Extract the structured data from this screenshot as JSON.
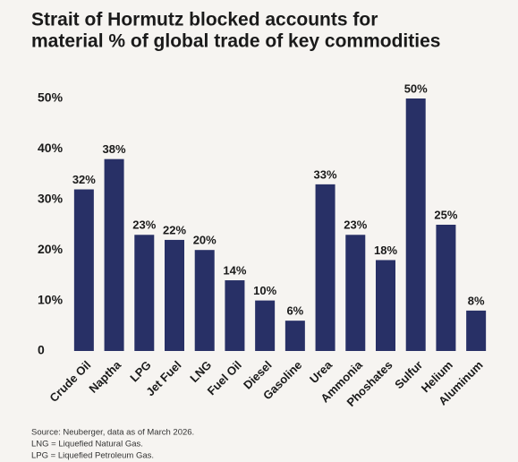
{
  "chart_data": {
    "type": "bar",
    "title_lines": [
      "Strait of Hormutz blocked accounts for",
      "material % of global trade of key commodities"
    ],
    "categories": [
      "Crude Oil",
      "Naptha",
      "LPG",
      "Jet Fuel",
      "LNG",
      "Fuel Oil",
      "Diesel",
      "Gasoline",
      "Urea",
      "Ammonia",
      "Phoshates",
      "Sulfur",
      "Helium",
      "Aluminum"
    ],
    "values": [
      32,
      38,
      23,
      22,
      20,
      14,
      10,
      6,
      33,
      23,
      18,
      50,
      25,
      8
    ],
    "value_labels": [
      "32%",
      "38%",
      "23%",
      "22%",
      "20%",
      "14%",
      "10%",
      "6%",
      "33%",
      "23%",
      "18%",
      "50%",
      "25%",
      "8%"
    ],
    "color": "#283066",
    "ylim": [
      0,
      50
    ],
    "yticks": [
      0,
      {
        "value": 10,
        "label": "10%"
      },
      {
        "value": 20,
        "label": "20%"
      },
      {
        "value": 30,
        "label": "30%"
      },
      {
        "value": 40,
        "label": "40%"
      },
      {
        "value": 50,
        "label": "50%"
      }
    ],
    "grid": false,
    "notes": [
      "Source: Neuberger, data as of March 2026.",
      "LNG = Liquefied Natural Gas.",
      "LPG = Liquefied Petroleum Gas."
    ]
  }
}
